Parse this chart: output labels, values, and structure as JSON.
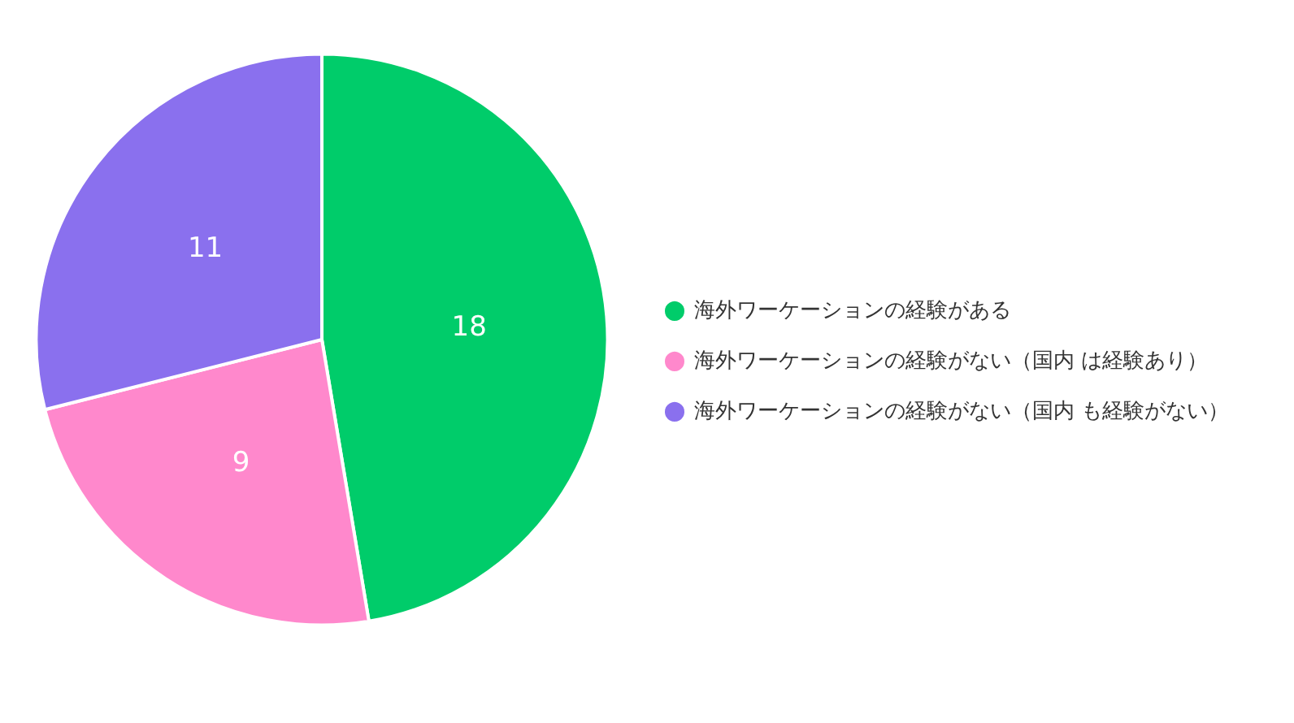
{
  "chart_data": {
    "type": "pie",
    "categories": [
      "海外ワーケーションの経験がある",
      "海外ワーケーションの経験がない（国内 は経験あり）",
      "海外ワーケーションの経験がない（国内 も経験がない）"
    ],
    "values": [
      18,
      9,
      11
    ],
    "colors": [
      "#00cc6a",
      "#ff88cc",
      "#8a70ee"
    ],
    "data_labels": true,
    "legend": "right"
  }
}
